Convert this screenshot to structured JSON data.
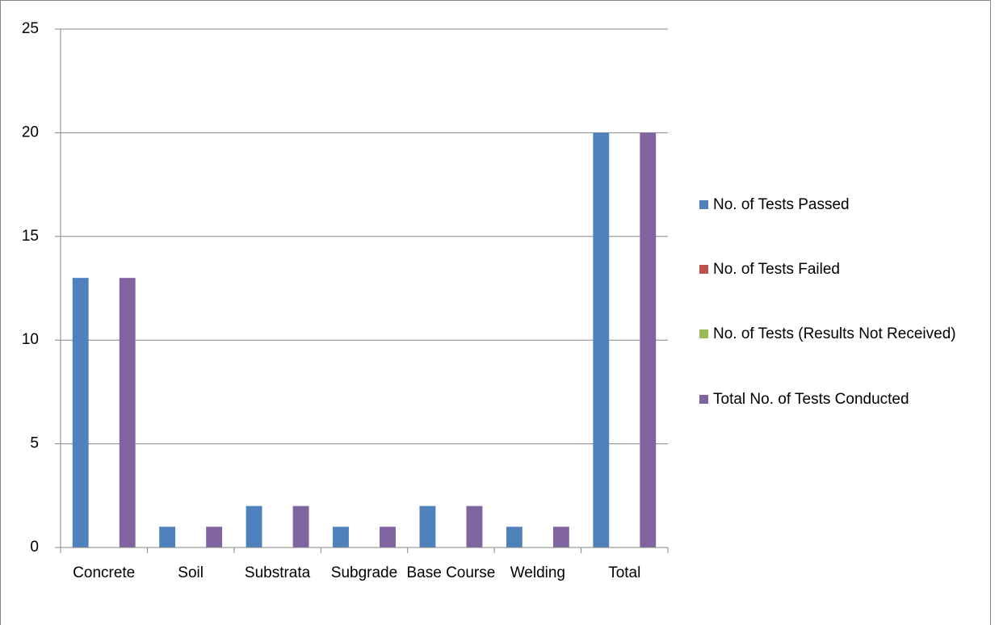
{
  "chart_data": {
    "type": "bar",
    "categories": [
      "Concrete",
      "Soil",
      "Substrata",
      "Subgrade",
      "Base Course",
      "Welding",
      "Total"
    ],
    "series": [
      {
        "name": "No. of Tests Passed",
        "color": "#4f81bd",
        "values": [
          13,
          1,
          2,
          1,
          2,
          1,
          20
        ]
      },
      {
        "name": "No. of Tests Failed",
        "color": "#c0504d",
        "values": [
          0,
          0,
          0,
          0,
          0,
          0,
          0
        ]
      },
      {
        "name": "No. of Tests (Results Not Received)",
        "color": "#9bbb59",
        "values": [
          0,
          0,
          0,
          0,
          0,
          0,
          0
        ]
      },
      {
        "name": "Total No. of Tests Conducted",
        "color": "#8064a2",
        "values": [
          13,
          1,
          2,
          1,
          2,
          1,
          20
        ]
      }
    ],
    "ylim": [
      0,
      25
    ],
    "yticks": [
      0,
      5,
      10,
      15,
      20,
      25
    ],
    "grid": true,
    "legend": "right"
  }
}
